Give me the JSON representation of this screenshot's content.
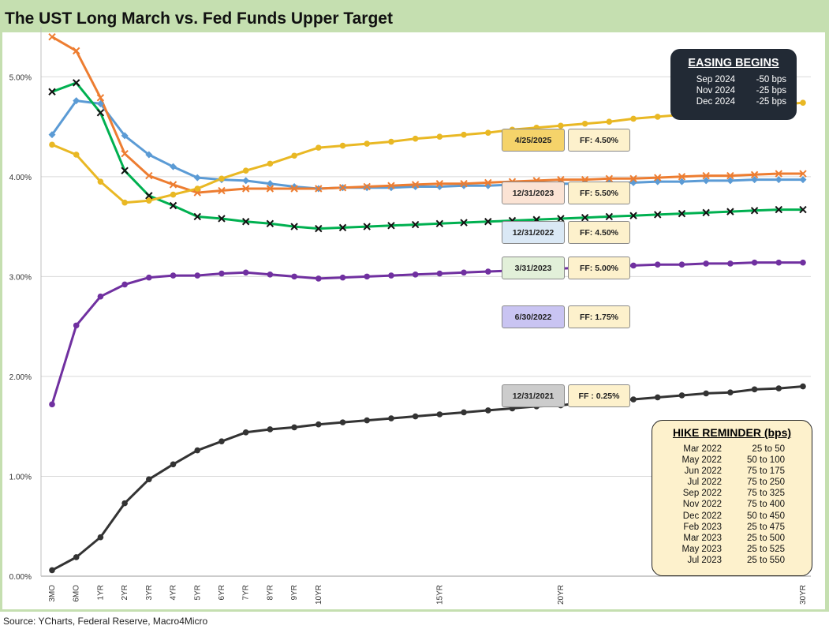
{
  "title": "The UST Long March vs. Fed Funds Upper Target",
  "source": "Source: YCharts, Federal Reserve, Macro4Micro",
  "easing": {
    "title": "EASING BEGINS",
    "rows": [
      {
        "date": "Sep 2024",
        "bps": "-50 bps"
      },
      {
        "date": "Nov 2024",
        "bps": "-25 bps"
      },
      {
        "date": "Dec 2024",
        "bps": "-25 bps"
      }
    ]
  },
  "hike": {
    "title": "HIKE REMINDER (bps)",
    "rows": [
      {
        "date": "Mar 2022",
        "move": "25 to 50"
      },
      {
        "date": "May 2022",
        "move": "50 to 100"
      },
      {
        "date": "Jun 2022",
        "move": "75 to 175"
      },
      {
        "date": "Jul 2022",
        "move": "75 to 250"
      },
      {
        "date": "Sep 2022",
        "move": "75 to 325"
      },
      {
        "date": "Nov 2022",
        "move": "75 to 400"
      },
      {
        "date": "Dec 2022",
        "move": "50 to 450"
      },
      {
        "date": "Feb 2023",
        "move": "25 to 475"
      },
      {
        "date": "Mar 2023",
        "move": "25 to 500"
      },
      {
        "date": "May 2023",
        "move": "25 to 525"
      },
      {
        "date": "Jul 2023",
        "move": "25 to 550"
      }
    ]
  },
  "labels": [
    {
      "date": "4/25/2025",
      "ff": "FF: 4.50%",
      "color": "#f5d36a"
    },
    {
      "date": "12/31/2023",
      "ff": "FF: 5.50%",
      "color": "#fbe3d4"
    },
    {
      "date": "12/31/2022",
      "ff": "FF: 4.50%",
      "color": "#dae8f5"
    },
    {
      "date": "3/31/2023",
      "ff": "FF: 5.00%",
      "color": "#e2f0d9"
    },
    {
      "date": "6/30/2022",
      "ff": "FF: 1.75%",
      "color": "#c9c4f2"
    },
    {
      "date": "12/31/2021",
      "ff": "FF : 0.25%",
      "color": "#cccccc"
    }
  ],
  "ff_box_color": "#fdf1cc",
  "chart_data": {
    "type": "line",
    "y_tick_labels": [
      "0.00%",
      "1.00%",
      "2.00%",
      "3.00%",
      "4.00%",
      "5.00%"
    ],
    "ylim": [
      0,
      5.5
    ],
    "grid": true,
    "x_tick_labels": [
      "3MO",
      "6MO",
      "1YR",
      "2YR",
      "3YR",
      "4YR",
      "5YR",
      "6YR",
      "7YR",
      "8YR",
      "9YR",
      "10YR",
      "15YR",
      "20YR",
      "30YR"
    ],
    "x": [
      0.25,
      0.5,
      1,
      2,
      3,
      4,
      5,
      6,
      7,
      8,
      9,
      10,
      11,
      12,
      13,
      14,
      15,
      16,
      17,
      18,
      19,
      20,
      21,
      22,
      23,
      24,
      25,
      26,
      27,
      28,
      29,
      30
    ],
    "series": [
      {
        "name": "12/31/2021",
        "color": "#333333",
        "marker": "dot",
        "values": [
          0.06,
          0.19,
          0.39,
          0.73,
          0.97,
          1.12,
          1.26,
          1.35,
          1.44,
          1.47,
          1.49,
          1.52,
          1.54,
          1.56,
          1.58,
          1.6,
          1.62,
          1.64,
          1.66,
          1.68,
          1.7,
          1.71,
          1.74,
          1.76,
          1.77,
          1.79,
          1.81,
          1.83,
          1.84,
          1.87,
          1.88,
          1.9
        ]
      },
      {
        "name": "6/30/2022",
        "color": "#7030a0",
        "marker": "dot",
        "values": [
          1.72,
          2.51,
          2.8,
          2.92,
          2.99,
          3.01,
          3.01,
          3.03,
          3.04,
          3.02,
          3.0,
          2.98,
          2.99,
          3.0,
          3.01,
          3.02,
          3.03,
          3.04,
          3.05,
          3.06,
          3.07,
          3.08,
          3.09,
          3.1,
          3.11,
          3.12,
          3.12,
          3.13,
          3.13,
          3.14,
          3.14,
          3.14
        ]
      },
      {
        "name": "12/31/2022",
        "color": "#5b9bd5",
        "marker": "diamond",
        "values": [
          4.42,
          4.76,
          4.73,
          4.41,
          4.22,
          4.1,
          3.99,
          3.97,
          3.96,
          3.93,
          3.9,
          3.88,
          3.89,
          3.89,
          3.89,
          3.9,
          3.9,
          3.91,
          3.91,
          3.92,
          3.92,
          3.93,
          3.93,
          3.94,
          3.94,
          3.95,
          3.95,
          3.96,
          3.96,
          3.97,
          3.97,
          3.97
        ]
      },
      {
        "name": "3/31/2023",
        "color": "#00b050",
        "marker": "x",
        "values": [
          4.85,
          4.94,
          4.64,
          4.06,
          3.81,
          3.71,
          3.6,
          3.58,
          3.55,
          3.53,
          3.5,
          3.48,
          3.49,
          3.5,
          3.51,
          3.52,
          3.53,
          3.54,
          3.55,
          3.56,
          3.57,
          3.58,
          3.59,
          3.6,
          3.61,
          3.62,
          3.63,
          3.64,
          3.65,
          3.66,
          3.67,
          3.67
        ]
      },
      {
        "name": "12/31/2023",
        "color": "#ed7d31",
        "marker": "x",
        "values": [
          5.4,
          5.26,
          4.79,
          4.23,
          4.01,
          3.92,
          3.84,
          3.86,
          3.88,
          3.88,
          3.88,
          3.88,
          3.89,
          3.9,
          3.91,
          3.92,
          3.93,
          3.93,
          3.94,
          3.95,
          3.96,
          3.97,
          3.97,
          3.98,
          3.98,
          3.99,
          4.0,
          4.01,
          4.01,
          4.02,
          4.03,
          4.03
        ]
      },
      {
        "name": "4/25/2025",
        "color": "#e9b824",
        "marker": "dot",
        "values": [
          4.32,
          4.22,
          3.95,
          3.74,
          3.76,
          3.82,
          3.88,
          3.98,
          4.06,
          4.13,
          4.21,
          4.29,
          4.31,
          4.33,
          4.35,
          4.38,
          4.4,
          4.42,
          4.44,
          4.47,
          4.49,
          4.51,
          4.53,
          4.55,
          4.58,
          4.6,
          4.62,
          4.65,
          4.67,
          4.7,
          4.72,
          4.74
        ]
      }
    ]
  }
}
